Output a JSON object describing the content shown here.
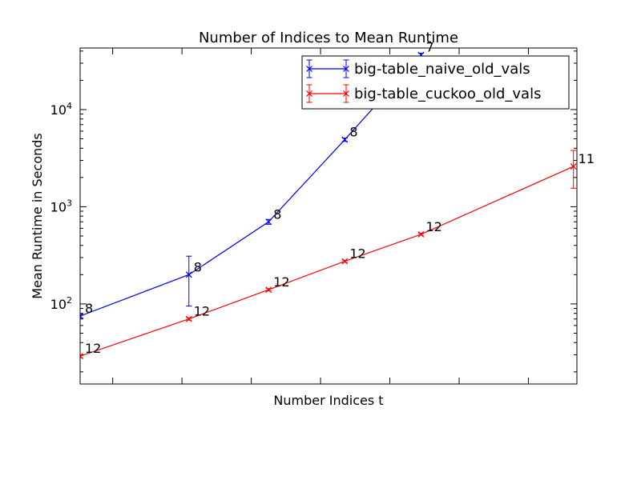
{
  "chart_data": {
    "type": "line",
    "title": "Number of Indices to Mean Runtime",
    "xlabel": "Number Indices t",
    "ylabel": "Mean Runtime in Seconds",
    "x_log_scale": true,
    "y_log_scale": true,
    "ylim": [
      15,
      43000
    ],
    "grid": false,
    "legend_position": "top-right",
    "y_tick_labels": [
      {
        "value": 100,
        "base": "10",
        "exp": "2"
      },
      {
        "value": 1000,
        "base": "10",
        "exp": "3"
      },
      {
        "value": 10000,
        "base": "10",
        "exp": "4"
      }
    ],
    "x_tick_positions_log2": [
      1,
      2,
      3,
      4,
      5,
      6,
      7,
      8
    ],
    "xlim_log2": [
      1.53,
      8.7
    ],
    "series": [
      {
        "name": "big-table_naive_old_vals",
        "color": "#0000ff",
        "x_log2": [
          1.53,
          3.1,
          4.25,
          5.35,
          6.45
        ],
        "values": [
          75,
          200,
          700,
          4900,
          36500
        ],
        "err_low": [
          72,
          95,
          660,
          4700,
          35000
        ],
        "err_high": [
          78,
          310,
          740,
          5100,
          38000
        ],
        "point_labels": [
          "8",
          "8",
          "8",
          "8",
          "7"
        ]
      },
      {
        "name": "big-table_cuckoo_old_vals",
        "color": "#ff0000",
        "x_log2": [
          1.53,
          3.1,
          4.25,
          5.35,
          6.45,
          8.65
        ],
        "values": [
          29,
          70,
          140,
          275,
          520,
          2600
        ],
        "err_low": [
          28,
          68,
          136,
          268,
          510,
          1550
        ],
        "err_high": [
          30,
          72,
          144,
          282,
          535,
          3800
        ],
        "point_labels": [
          "12",
          "12",
          "12",
          "12",
          "12",
          "11"
        ]
      }
    ]
  }
}
